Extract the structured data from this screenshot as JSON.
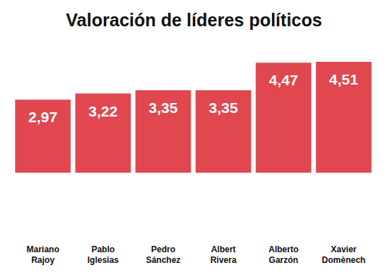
{
  "chart_data": {
    "type": "bar",
    "title": "Valoración de líderes políticos",
    "categories": [
      "Mariano Rajoy",
      "Pablo Iglesias",
      "Pedro Sánchez",
      "Albert Rivera",
      "Alberto Garzón",
      "Xavier Domènech"
    ],
    "values": [
      2.97,
      3.22,
      3.35,
      3.35,
      4.47,
      4.51
    ],
    "value_labels": [
      "2,97",
      "3,22",
      "3,35",
      "3,35",
      "4,47",
      "4,51"
    ],
    "color": "#e0474f",
    "ylim": [
      0,
      5
    ],
    "grid": false,
    "data_labels": true,
    "tick_labels": "x"
  }
}
